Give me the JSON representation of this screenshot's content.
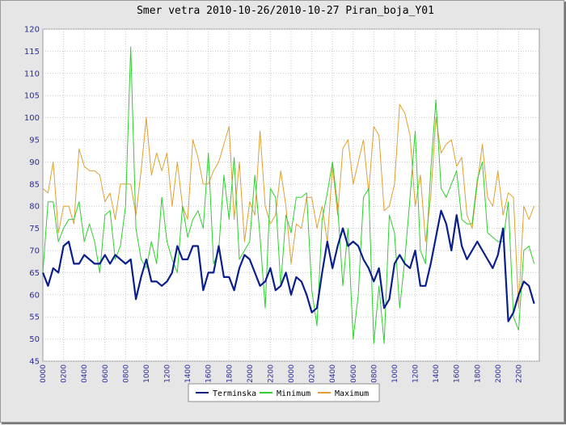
{
  "chart_data": {
    "type": "line",
    "title": "Smer vetra 2010-10-26/2010-10-27 Piran_boja_Y01",
    "xlabel": "",
    "ylabel": "",
    "ylim": [
      45,
      120
    ],
    "yticks": [
      45,
      50,
      55,
      60,
      65,
      70,
      75,
      80,
      85,
      90,
      95,
      100,
      105,
      110,
      115,
      120
    ],
    "xticks": [
      "0000",
      "0200",
      "0400",
      "0600",
      "0800",
      "1000",
      "1200",
      "1400",
      "1600",
      "1800",
      "2000",
      "2200",
      "0000",
      "0200",
      "0400",
      "0600",
      "0800",
      "1000",
      "1200",
      "1400",
      "1600",
      "1800",
      "2000",
      "2200"
    ],
    "grid": true,
    "legend_position": "bottom-center",
    "colors": {
      "Terminska": "#0b1f8c",
      "Minimum": "#2ed02e",
      "Maximum": "#e0a030"
    },
    "series": [
      {
        "name": "Terminska",
        "values": [
          65,
          62,
          66,
          65,
          71,
          72,
          67,
          67,
          69,
          68,
          67,
          67,
          69,
          67,
          69,
          68,
          67,
          68,
          59,
          64,
          68,
          63,
          63,
          62,
          63,
          65,
          71,
          68,
          68,
          71,
          71,
          61,
          65,
          65,
          71,
          64,
          64,
          61,
          66,
          69,
          68,
          65,
          62,
          63,
          66,
          61,
          62,
          65,
          60,
          64,
          63,
          60,
          56,
          57,
          65,
          72,
          66,
          71,
          75,
          71,
          72,
          71,
          68,
          66,
          63,
          66,
          57,
          59,
          67,
          69,
          67,
          66,
          70,
          62,
          62,
          67,
          73,
          79,
          76,
          70,
          78,
          71,
          68,
          70,
          72,
          70,
          68,
          66,
          69,
          75,
          54,
          56,
          60,
          63,
          62,
          58
        ]
      },
      {
        "name": "Minimum",
        "values": [
          65,
          81,
          81,
          72,
          75,
          77,
          77,
          81,
          72,
          76,
          72,
          65,
          78,
          79,
          68,
          71,
          80,
          116,
          75,
          68,
          66,
          72,
          67,
          82,
          72,
          68,
          65,
          80,
          73,
          77,
          79,
          75,
          92,
          67,
          70,
          87,
          77,
          91,
          68,
          70,
          72,
          87,
          73,
          57,
          84,
          82,
          62,
          78,
          74,
          82,
          82,
          83,
          61,
          53,
          77,
          83,
          90,
          80,
          62,
          75,
          50,
          60,
          82,
          84,
          49,
          62,
          49,
          78,
          74,
          57,
          68,
          82,
          97,
          70,
          67,
          88,
          104,
          84,
          82,
          85,
          88,
          77,
          76,
          76,
          86,
          90,
          74,
          73,
          72,
          72,
          81,
          55,
          52,
          70,
          71,
          67
        ]
      },
      {
        "name": "Maximum",
        "values": [
          84,
          83,
          90,
          74,
          80,
          80,
          76,
          93,
          89,
          88,
          88,
          87,
          81,
          83,
          77,
          85,
          85,
          85,
          78,
          88,
          100,
          87,
          92,
          88,
          92,
          80,
          90,
          80,
          77,
          95,
          91,
          85,
          85,
          88,
          90,
          94,
          98,
          77,
          90,
          72,
          81,
          78,
          97,
          80,
          76,
          78,
          88,
          80,
          67,
          76,
          75,
          82,
          82,
          75,
          80,
          72,
          89,
          78,
          93,
          95,
          85,
          90,
          95,
          83,
          98,
          96,
          79,
          80,
          85,
          103,
          101,
          96,
          80,
          87,
          72,
          82,
          100,
          92,
          94,
          95,
          89,
          91,
          78,
          75,
          85,
          94,
          82,
          80,
          88,
          78,
          83,
          82,
          57,
          80,
          77,
          80
        ]
      }
    ]
  }
}
